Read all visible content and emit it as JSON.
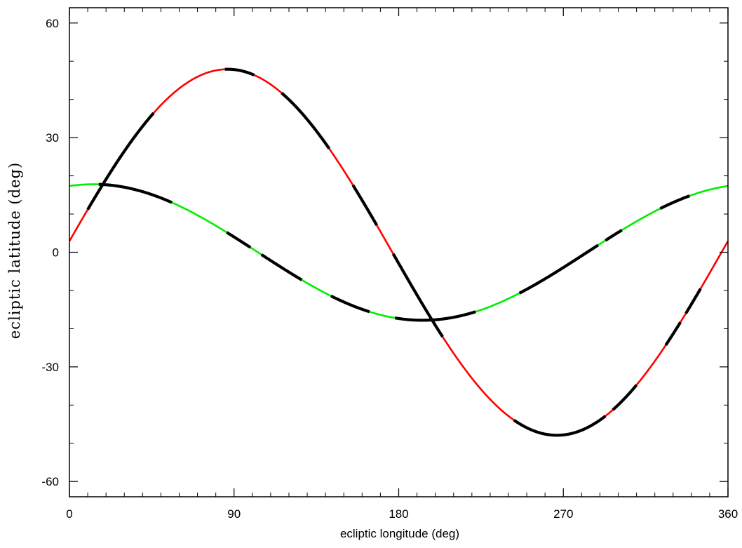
{
  "chart_data": {
    "type": "line",
    "title": "",
    "xlabel": "ecliptic longitude (deg)",
    "ylabel": "ecliptic latitude (deg)",
    "xlim": [
      0,
      360
    ],
    "ylim": [
      -64,
      64
    ],
    "x_ticks": [
      0,
      90,
      180,
      270,
      360
    ],
    "x_tick_labels": [
      "0",
      "90",
      "180",
      "270",
      "360"
    ],
    "x_minor_step": 10,
    "y_ticks": [
      -60,
      -30,
      0,
      30,
      60
    ],
    "y_tick_labels": [
      "-60",
      "-30",
      "0",
      "30",
      "60"
    ],
    "y_minor_step": 10,
    "grid": false,
    "legend": "none",
    "colors": {
      "series_a": "#ff0000",
      "series_b": "#00ee00",
      "highlight": "#000000"
    },
    "series": [
      {
        "color": "#ff0000",
        "curve": {
          "amplitude": 47.9,
          "peak_longitude": 86.5,
          "offset": 0
        },
        "highlight_ranges": [
          [
            10,
            46
          ],
          [
            85,
            101
          ],
          [
            116,
            142
          ],
          [
            155,
            168
          ],
          [
            177,
            204
          ],
          [
            243,
            293
          ],
          [
            297,
            310
          ],
          [
            326,
            334
          ],
          [
            337,
            345
          ]
        ]
      },
      {
        "color": "#00ee00",
        "curve": {
          "amplitude": 17.8,
          "peak_longitude": 13,
          "offset": 0
        },
        "highlight_ranges": [
          [
            16,
            56
          ],
          [
            86,
            99
          ],
          [
            105,
            127
          ],
          [
            143,
            164
          ],
          [
            178,
            222
          ],
          [
            246,
            289
          ],
          [
            293,
            302
          ],
          [
            323,
            339
          ]
        ]
      }
    ]
  }
}
